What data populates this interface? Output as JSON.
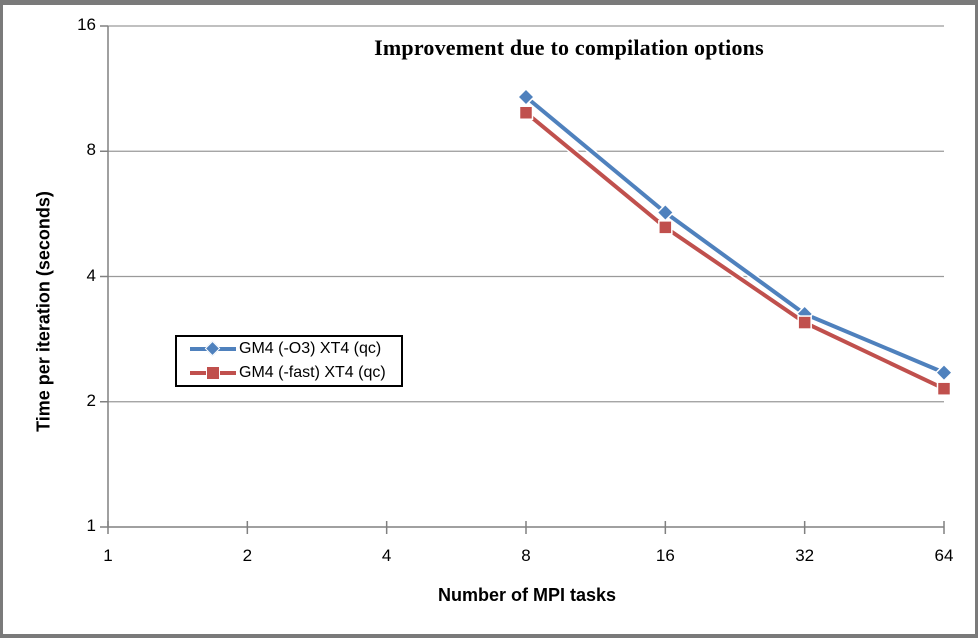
{
  "chart_data": {
    "type": "line",
    "title": "Improvement due to compilation options",
    "xlabel": "Number of MPI tasks",
    "ylabel": "Time per iteration (seconds)",
    "x_scale": "log2",
    "y_scale": "log2",
    "xlim": [
      1,
      64
    ],
    "ylim": [
      1,
      16
    ],
    "x_ticks": [
      1,
      2,
      4,
      8,
      16,
      32,
      64
    ],
    "y_ticks": [
      16,
      8,
      4,
      2,
      1
    ],
    "grid": "horizontal-only",
    "legend_position": "inside-middle-left",
    "x": [
      8,
      16,
      32,
      64
    ],
    "series": [
      {
        "name": "GM4 (-O3) XT4 (qc)",
        "marker": "diamond",
        "color": "#4F81BD",
        "values": [
          10.8,
          5.7,
          3.25,
          2.35
        ]
      },
      {
        "name": "GM4 (-fast) XT4 (qc)",
        "marker": "square",
        "color": "#C0504D",
        "values": [
          9.9,
          5.25,
          3.1,
          2.15
        ]
      }
    ],
    "colors": {
      "gridline": "#9a9a9a",
      "axis": "#808080",
      "frame_border": "#7a7a7a",
      "text": "#000000",
      "legend_border": "#000000",
      "background": "#ffffff"
    }
  }
}
